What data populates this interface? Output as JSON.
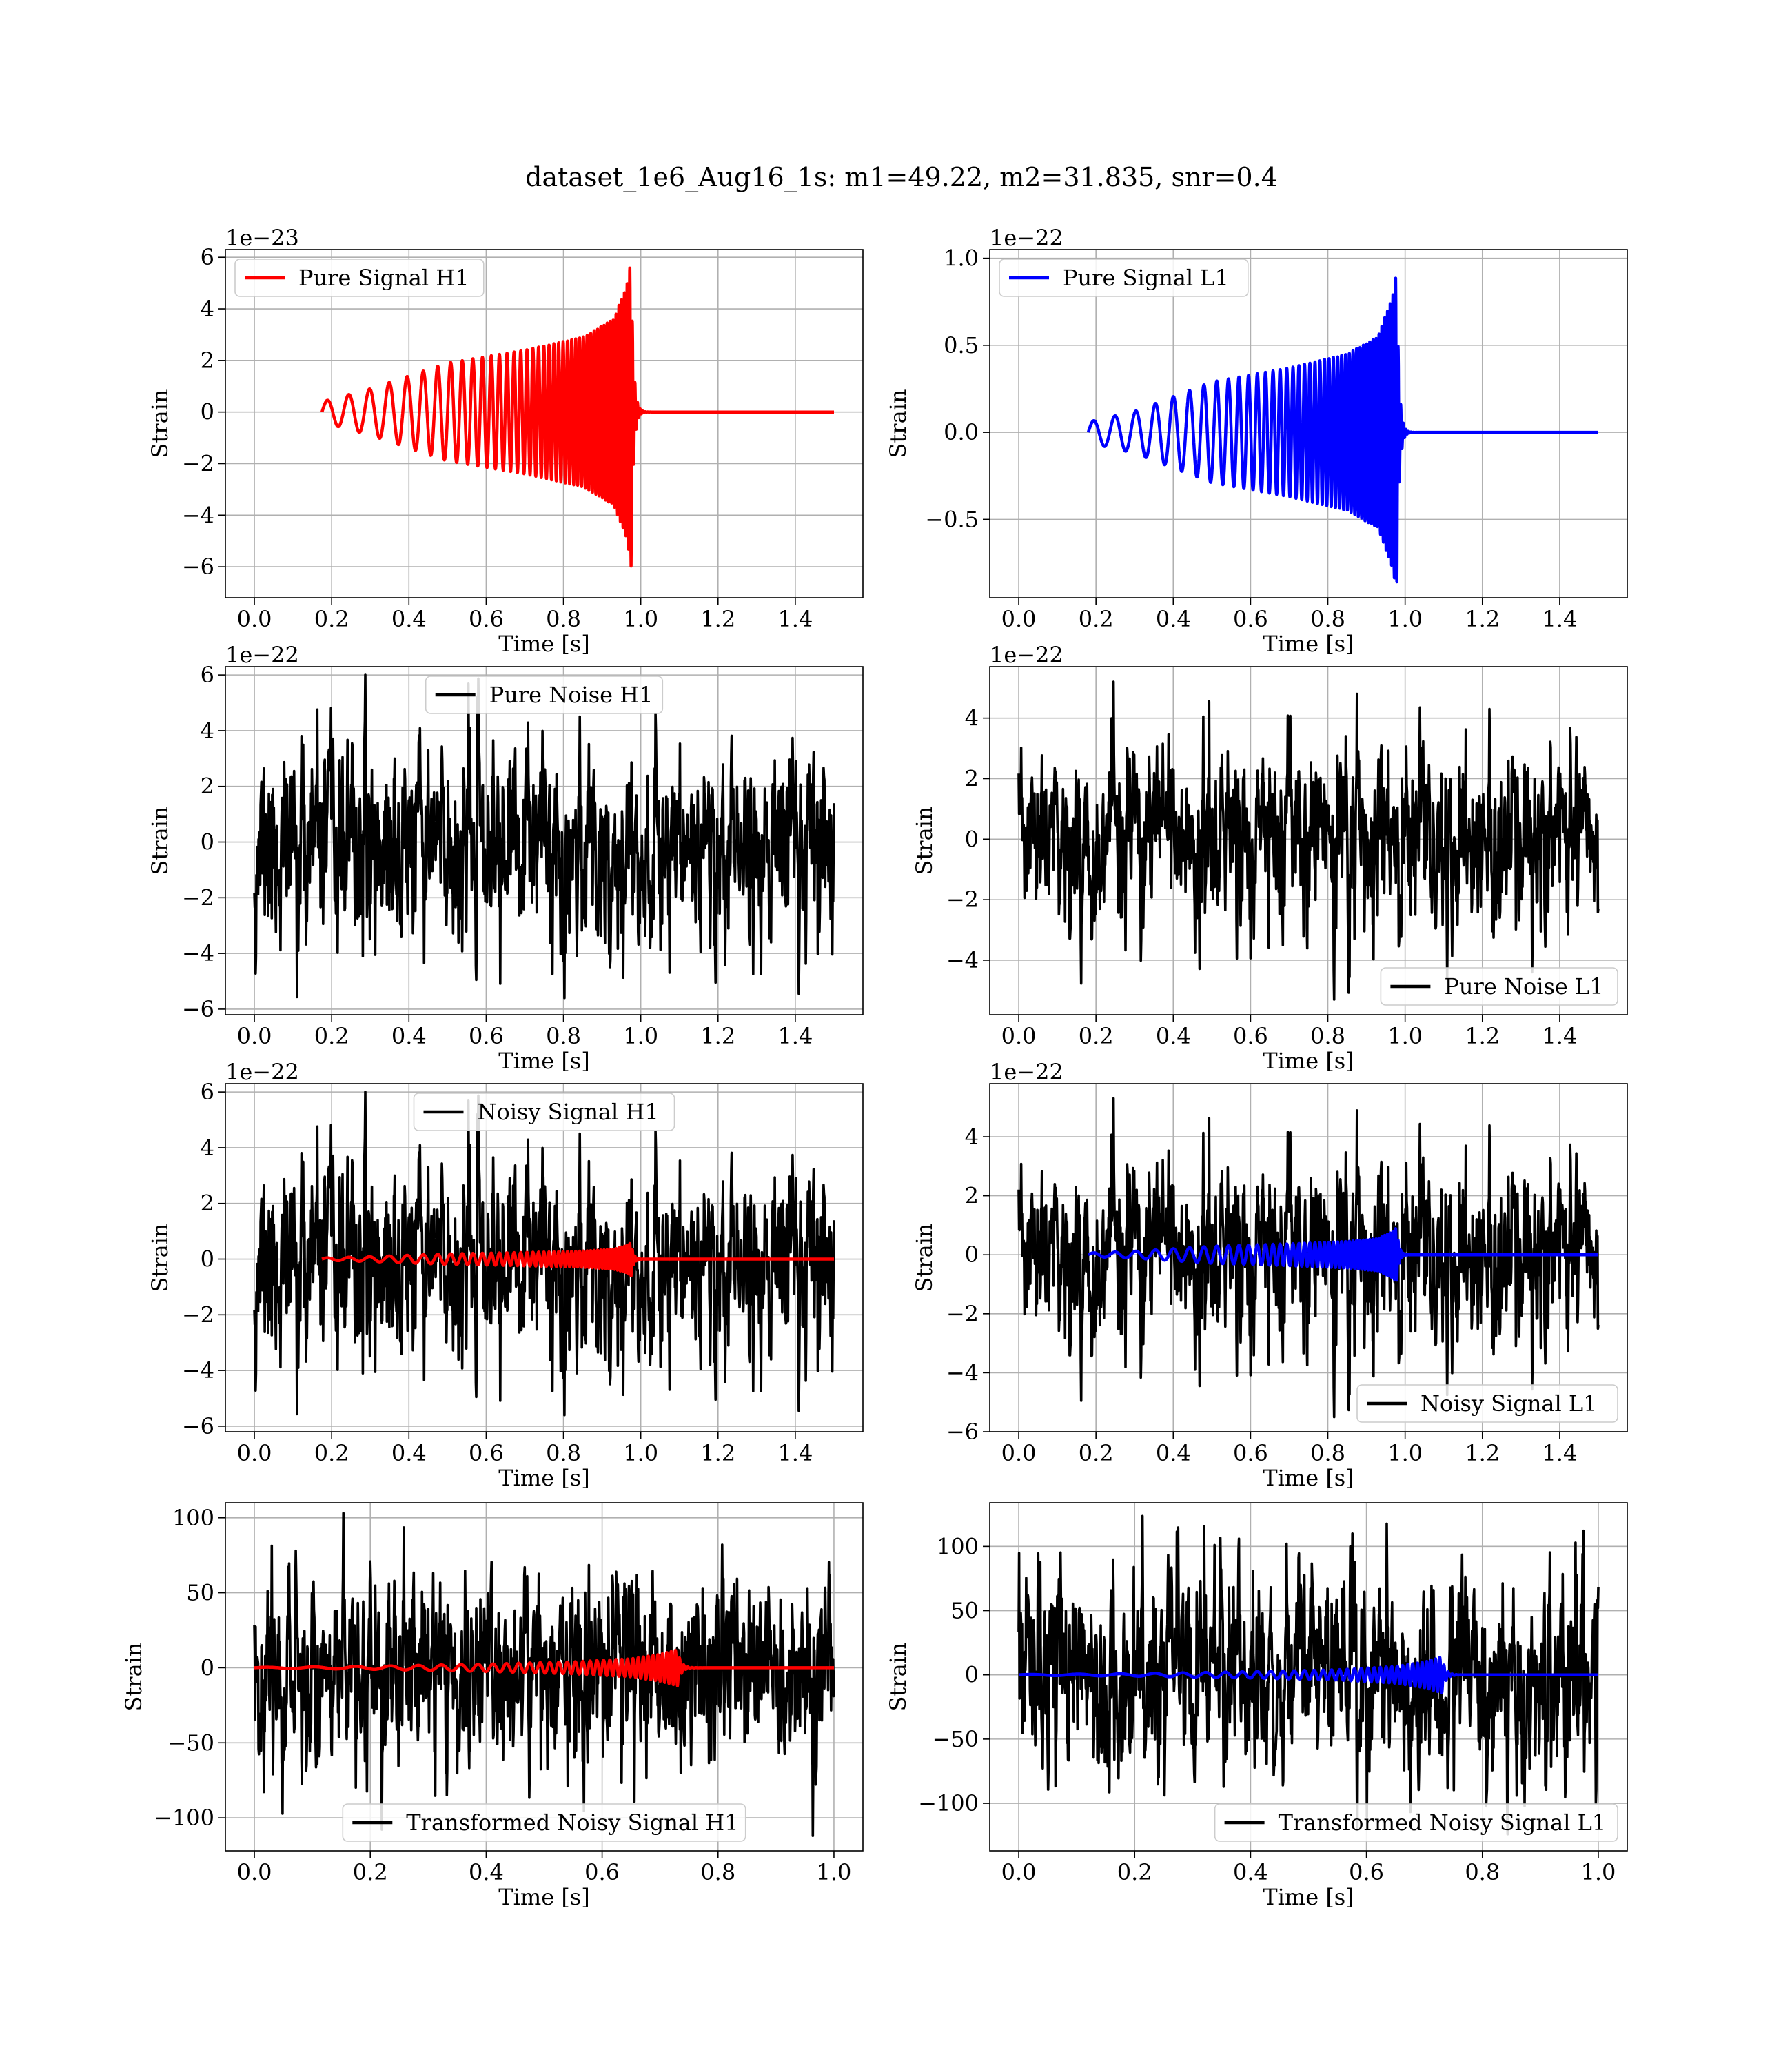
{
  "figure": {
    "title": "dataset_1e6_Aug16_1s: m1=49.22, m2=31.835, snr=0.4"
  },
  "colors": {
    "h1_signal": "#ff0000",
    "l1_signal": "#0000ff",
    "noise": "#000000"
  },
  "chart_data": [
    {
      "type": "line",
      "id": "pure-signal-h1",
      "legend": "Pure Signal H1",
      "legend_placement": "upper left",
      "xlabel": "Time [s]",
      "ylabel": "Strain",
      "offset_text": "1e−23",
      "xlim": [
        -0.075,
        1.575
      ],
      "ylim": [
        -7.2,
        6.3
      ],
      "xticks": [
        0.0,
        0.2,
        0.4,
        0.6,
        0.8,
        1.0,
        1.2,
        1.4
      ],
      "xtick_labels": [
        "0.0",
        "0.2",
        "0.4",
        "0.6",
        "0.8",
        "1.0",
        "1.2",
        "1.4"
      ],
      "yticks": [
        -6,
        -4,
        -2,
        0,
        2,
        4,
        6
      ],
      "ytick_labels": [
        "−6",
        "−4",
        "−2",
        "0",
        "2",
        "4",
        "6"
      ],
      "grid": true,
      "series": [
        {
          "kind": "chirp",
          "color": "#ff0000",
          "t_start": 0.175,
          "t_merge": 0.975,
          "t_end": 1.5,
          "f_start": 18,
          "f_merge": 150,
          "amp_envelope": [
            [
              0.175,
              0.4
            ],
            [
              0.3,
              0.9
            ],
            [
              0.5,
              1.9
            ],
            [
              0.7,
              2.4
            ],
            [
              0.85,
              2.9
            ],
            [
              0.93,
              3.6
            ],
            [
              0.965,
              5.0
            ],
            [
              0.975,
              6.0
            ]
          ]
        }
      ]
    },
    {
      "type": "line",
      "id": "pure-signal-l1",
      "legend": "Pure Signal L1",
      "legend_placement": "upper left",
      "xlabel": "Time [s]",
      "ylabel": "Strain",
      "offset_text": "1e−22",
      "xlim": [
        -0.075,
        1.575
      ],
      "ylim": [
        -0.95,
        1.05
      ],
      "xticks": [
        0.0,
        0.2,
        0.4,
        0.6,
        0.8,
        1.0,
        1.2,
        1.4
      ],
      "xtick_labels": [
        "0.0",
        "0.2",
        "0.4",
        "0.6",
        "0.8",
        "1.0",
        "1.2",
        "1.4"
      ],
      "yticks": [
        -0.5,
        0.0,
        0.5,
        1.0
      ],
      "ytick_labels": [
        "−0.5",
        "0.0",
        "0.5",
        "1.0"
      ],
      "grid": true,
      "series": [
        {
          "kind": "chirp",
          "color": "#0000ff",
          "t_start": 0.18,
          "t_merge": 0.978,
          "t_end": 1.5,
          "f_start": 18,
          "f_merge": 150,
          "amp_envelope": [
            [
              0.18,
              0.06
            ],
            [
              0.3,
              0.12
            ],
            [
              0.5,
              0.29
            ],
            [
              0.7,
              0.37
            ],
            [
              0.85,
              0.45
            ],
            [
              0.93,
              0.55
            ],
            [
              0.97,
              0.8
            ],
            [
              0.978,
              0.95
            ]
          ]
        }
      ]
    },
    {
      "type": "line",
      "id": "pure-noise-h1",
      "legend": "Pure Noise H1",
      "legend_placement": "upper center",
      "xlabel": "Time [s]",
      "ylabel": "Strain",
      "offset_text": "1e−22",
      "xlim": [
        -0.075,
        1.575
      ],
      "ylim": [
        -6.2,
        6.3
      ],
      "xticks": [
        0.0,
        0.2,
        0.4,
        0.6,
        0.8,
        1.0,
        1.2,
        1.4
      ],
      "xtick_labels": [
        "0.0",
        "0.2",
        "0.4",
        "0.6",
        "0.8",
        "1.0",
        "1.2",
        "1.4"
      ],
      "yticks": [
        -6,
        -4,
        -2,
        0,
        2,
        4,
        6
      ],
      "ytick_labels": [
        "−6",
        "−4",
        "−2",
        "0",
        "2",
        "4",
        "6"
      ],
      "grid": true,
      "series": [
        {
          "kind": "noise",
          "color": "#000000",
          "t_start": 0.0,
          "t_end": 1.5,
          "sigma": 1.5,
          "peak_max": 6.0,
          "peak_min": -5.6,
          "seed": 11
        }
      ]
    },
    {
      "type": "line",
      "id": "pure-noise-l1",
      "legend": "Pure Noise L1",
      "legend_placement": "lower right",
      "xlabel": "Time [s]",
      "ylabel": "Strain",
      "offset_text": "1e−22",
      "xlim": [
        -0.075,
        1.575
      ],
      "ylim": [
        -5.8,
        5.7
      ],
      "xticks": [
        0.0,
        0.2,
        0.4,
        0.6,
        0.8,
        1.0,
        1.2,
        1.4
      ],
      "xtick_labels": [
        "0.0",
        "0.2",
        "0.4",
        "0.6",
        "0.8",
        "1.0",
        "1.2",
        "1.4"
      ],
      "yticks": [
        -4,
        -2,
        0,
        2,
        4
      ],
      "ytick_labels": [
        "−4",
        "−2",
        "0",
        "2",
        "4"
      ],
      "grid": true,
      "series": [
        {
          "kind": "noise",
          "color": "#000000",
          "t_start": 0.0,
          "t_end": 1.5,
          "sigma": 1.4,
          "peak_max": 5.2,
          "peak_min": -5.3,
          "seed": 23
        }
      ]
    },
    {
      "type": "line",
      "id": "noisy-signal-h1",
      "legend": "Noisy Signal H1",
      "legend_placement": "upper center",
      "xlabel": "Time [s]",
      "ylabel": "Strain",
      "offset_text": "1e−22",
      "xlim": [
        -0.075,
        1.575
      ],
      "ylim": [
        -6.2,
        6.3
      ],
      "xticks": [
        0.0,
        0.2,
        0.4,
        0.6,
        0.8,
        1.0,
        1.2,
        1.4
      ],
      "xtick_labels": [
        "0.0",
        "0.2",
        "0.4",
        "0.6",
        "0.8",
        "1.0",
        "1.2",
        "1.4"
      ],
      "yticks": [
        -6,
        -4,
        -2,
        0,
        2,
        4,
        6
      ],
      "ytick_labels": [
        "−6",
        "−4",
        "−2",
        "0",
        "2",
        "4",
        "6"
      ],
      "grid": true,
      "series": [
        {
          "kind": "noise",
          "color": "#000000",
          "t_start": 0.0,
          "t_end": 1.5,
          "sigma": 1.5,
          "peak_max": 6.0,
          "peak_min": -5.6,
          "seed": 11
        },
        {
          "kind": "chirp",
          "color": "#ff0000",
          "t_start": 0.175,
          "t_merge": 0.975,
          "t_end": 1.5,
          "f_start": 18,
          "f_merge": 150,
          "amp_envelope": [
            [
              0.175,
              0.04
            ],
            [
              0.3,
              0.09
            ],
            [
              0.5,
              0.19
            ],
            [
              0.7,
              0.24
            ],
            [
              0.85,
              0.29
            ],
            [
              0.93,
              0.36
            ],
            [
              0.965,
              0.5
            ],
            [
              0.975,
              0.6
            ]
          ]
        }
      ]
    },
    {
      "type": "line",
      "id": "noisy-signal-l1",
      "legend": "Noisy Signal L1",
      "legend_placement": "lower right",
      "xlabel": "Time [s]",
      "ylabel": "Strain",
      "offset_text": "1e−22",
      "xlim": [
        -0.075,
        1.575
      ],
      "ylim": [
        -6.0,
        5.8
      ],
      "xticks": [
        0.0,
        0.2,
        0.4,
        0.6,
        0.8,
        1.0,
        1.2,
        1.4
      ],
      "xtick_labels": [
        "0.0",
        "0.2",
        "0.4",
        "0.6",
        "0.8",
        "1.0",
        "1.2",
        "1.4"
      ],
      "yticks": [
        -6,
        -4,
        -2,
        0,
        2,
        4
      ],
      "ytick_labels": [
        "−6",
        "−4",
        "−2",
        "0",
        "2",
        "4"
      ],
      "grid": true,
      "series": [
        {
          "kind": "noise",
          "color": "#000000",
          "t_start": 0.0,
          "t_end": 1.5,
          "sigma": 1.4,
          "peak_max": 5.3,
          "peak_min": -5.5,
          "seed": 23
        },
        {
          "kind": "chirp",
          "color": "#0000ff",
          "t_start": 0.18,
          "t_merge": 0.978,
          "t_end": 1.5,
          "f_start": 18,
          "f_merge": 150,
          "amp_envelope": [
            [
              0.18,
              0.06
            ],
            [
              0.3,
              0.12
            ],
            [
              0.5,
              0.29
            ],
            [
              0.7,
              0.37
            ],
            [
              0.85,
              0.45
            ],
            [
              0.93,
              0.55
            ],
            [
              0.97,
              0.8
            ],
            [
              0.978,
              0.95
            ]
          ]
        }
      ]
    },
    {
      "type": "line",
      "id": "transformed-noisy-signal-h1",
      "legend": "Transformed Noisy Signal H1",
      "legend_placement": "lower center",
      "xlabel": "Time [s]",
      "ylabel": "Strain",
      "offset_text": "",
      "xlim": [
        -0.05,
        1.05
      ],
      "ylim": [
        -122,
        110
      ],
      "xticks": [
        0.0,
        0.2,
        0.4,
        0.6,
        0.8,
        1.0
      ],
      "xtick_labels": [
        "0.0",
        "0.2",
        "0.4",
        "0.6",
        "0.8",
        "1.0"
      ],
      "yticks": [
        -100,
        -50,
        0,
        50,
        100
      ],
      "ytick_labels": [
        "−100",
        "−50",
        "0",
        "50",
        "100"
      ],
      "grid": true,
      "series": [
        {
          "kind": "noise",
          "color": "#000000",
          "t_start": 0.0,
          "t_end": 1.0,
          "sigma": 28,
          "peak_max": 103,
          "peak_min": -112,
          "seed": 37
        },
        {
          "kind": "chirp",
          "color": "#ff0000",
          "t_start": 0.0,
          "t_merge": 0.73,
          "t_end": 1.0,
          "f_start": 12,
          "f_merge": 140,
          "amp_envelope": [
            [
              0.0,
              0.3
            ],
            [
              0.2,
              1.0
            ],
            [
              0.4,
              2.5
            ],
            [
              0.55,
              4.0
            ],
            [
              0.65,
              6.0
            ],
            [
              0.7,
              9.0
            ],
            [
              0.73,
              12.0
            ]
          ]
        }
      ]
    },
    {
      "type": "line",
      "id": "transformed-noisy-signal-l1",
      "legend": "Transformed Noisy Signal L1",
      "legend_placement": "lower right",
      "xlabel": "Time [s]",
      "ylabel": "Strain",
      "offset_text": "",
      "xlim": [
        -0.05,
        1.05
      ],
      "ylim": [
        -137,
        134
      ],
      "xticks": [
        0.0,
        0.2,
        0.4,
        0.6,
        0.8,
        1.0
      ],
      "xtick_labels": [
        "0.0",
        "0.2",
        "0.4",
        "0.6",
        "0.8",
        "1.0"
      ],
      "yticks": [
        -100,
        -50,
        0,
        50,
        100
      ],
      "ytick_labels": [
        "−100",
        "−50",
        "0",
        "50",
        "100"
      ],
      "grid": true,
      "series": [
        {
          "kind": "noise",
          "color": "#000000",
          "t_start": 0.0,
          "t_end": 1.0,
          "sigma": 30,
          "peak_max": 124,
          "peak_min": -124,
          "seed": 53
        },
        {
          "kind": "chirp",
          "color": "#0000ff",
          "t_start": 0.0,
          "t_merge": 0.73,
          "t_end": 1.0,
          "f_start": 12,
          "f_merge": 140,
          "amp_envelope": [
            [
              0.0,
              0.3
            ],
            [
              0.2,
              1.0
            ],
            [
              0.4,
              2.5
            ],
            [
              0.55,
              4.0
            ],
            [
              0.65,
              6.5
            ],
            [
              0.7,
              10.0
            ],
            [
              0.73,
              14.0
            ]
          ]
        }
      ]
    }
  ]
}
